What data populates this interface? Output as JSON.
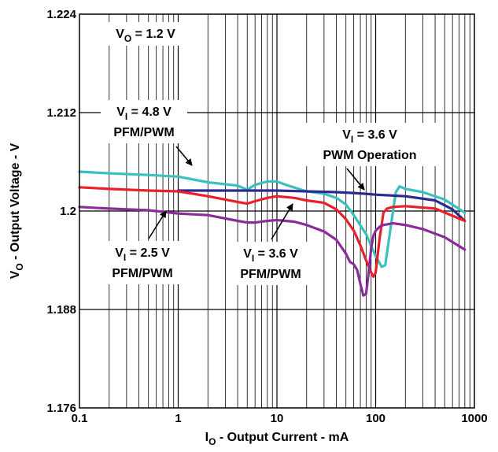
{
  "chart_data": {
    "type": "line",
    "title": "",
    "xlabel": {
      "main": "I",
      "sub": "O",
      "rest": " - Output Current - mA"
    },
    "ylabel": {
      "main": "V",
      "sub": "O",
      "rest": " - Output Voltage - V"
    },
    "xscale": "log",
    "xlim": [
      0.1,
      1000
    ],
    "ylim": [
      1.176,
      1.224
    ],
    "x_ticks": [
      "0.1",
      "1",
      "10",
      "100",
      "1000"
    ],
    "y_ticks": [
      "1.176",
      "1.188",
      "1.2",
      "1.212",
      "1.224"
    ],
    "grid": true,
    "series": [
      {
        "label_ref": "VI = 4.8 V PFM/PWM",
        "color": "#3cbfbf",
        "x": [
          0.1,
          0.2,
          0.5,
          1,
          2,
          4,
          5,
          6,
          8,
          10,
          13,
          20,
          30,
          40,
          50,
          60,
          80,
          100,
          115,
          125,
          140,
          160,
          175,
          200,
          300,
          500,
          800
        ],
        "y": [
          1.2048,
          1.2046,
          1.2044,
          1.2042,
          1.2035,
          1.2031,
          1.2026,
          1.2032,
          1.2036,
          1.2036,
          1.2031,
          1.2024,
          1.2021,
          1.2016,
          1.2008,
          1.1995,
          1.1972,
          1.1945,
          1.1932,
          1.1934,
          1.1975,
          1.2023,
          1.203,
          1.2027,
          1.2023,
          1.2014,
          1.1998
        ]
      },
      {
        "label_ref": "VI = 3.6 V PWM Operation",
        "color": "#2b2b8f",
        "x": [
          1,
          2,
          5,
          10,
          20,
          40,
          60,
          80,
          100,
          200,
          400,
          600,
          800
        ],
        "y": [
          1.2025,
          1.2025,
          1.2025,
          1.2025,
          1.2024,
          1.2023,
          1.2022,
          1.2021,
          1.202,
          1.2018,
          1.2013,
          1.2002,
          1.1988
        ]
      },
      {
        "label_ref": "VI = 3.6 V PFM/PWM",
        "color": "#e8202a",
        "x": [
          0.1,
          0.2,
          0.5,
          1,
          2,
          4,
          5,
          6,
          8,
          10,
          15,
          20,
          30,
          40,
          50,
          60,
          70,
          80,
          90,
          95,
          100,
          110,
          120,
          130,
          150,
          200,
          400,
          800
        ],
        "y": [
          1.2029,
          1.2027,
          1.2025,
          1.2024,
          1.2018,
          1.2011,
          1.2009,
          1.2012,
          1.2016,
          1.2018,
          1.2016,
          1.2013,
          1.201,
          1.2002,
          1.199,
          1.1976,
          1.1958,
          1.194,
          1.1925,
          1.192,
          1.1925,
          1.1968,
          1.1998,
          1.2003,
          1.2005,
          1.2006,
          1.2003,
          1.1988
        ]
      },
      {
        "label_ref": "VI = 2.5 V PFM/PWM",
        "color": "#8b2c9b",
        "x": [
          0.1,
          0.2,
          0.5,
          1,
          2,
          4,
          5,
          6,
          8,
          10,
          15,
          20,
          30,
          40,
          50,
          55,
          60,
          65,
          70,
          75,
          80,
          85,
          90,
          95,
          100,
          110,
          120,
          150,
          200,
          300,
          500,
          800
        ],
        "y": [
          1.2005,
          1.2003,
          1.2001,
          1.1997,
          1.1995,
          1.1988,
          1.1986,
          1.1986,
          1.1988,
          1.1989,
          1.1987,
          1.1983,
          1.1975,
          1.1965,
          1.1948,
          1.1938,
          1.1935,
          1.1928,
          1.1911,
          1.1897,
          1.1899,
          1.1925,
          1.1955,
          1.197,
          1.1976,
          1.1981,
          1.1983,
          1.1985,
          1.1983,
          1.1978,
          1.1968,
          1.1953
        ]
      }
    ],
    "annotations": [
      {
        "main": "V",
        "sub": "O",
        "rest": " = 1.2 V"
      },
      {
        "main": "V",
        "sub": "I",
        "rest": " = 4.8 V",
        "line2": "PFM/PWM"
      },
      {
        "main": "V",
        "sub": "I",
        "rest": " = 3.6 V",
        "line2": "PWM Operation"
      },
      {
        "main": "V",
        "sub": "I",
        "rest": " = 2.5 V",
        "line2": "PFM/PWM"
      },
      {
        "main": "V",
        "sub": "I",
        "rest": " = 3.6 V",
        "line2": "PFM/PWM"
      }
    ]
  }
}
